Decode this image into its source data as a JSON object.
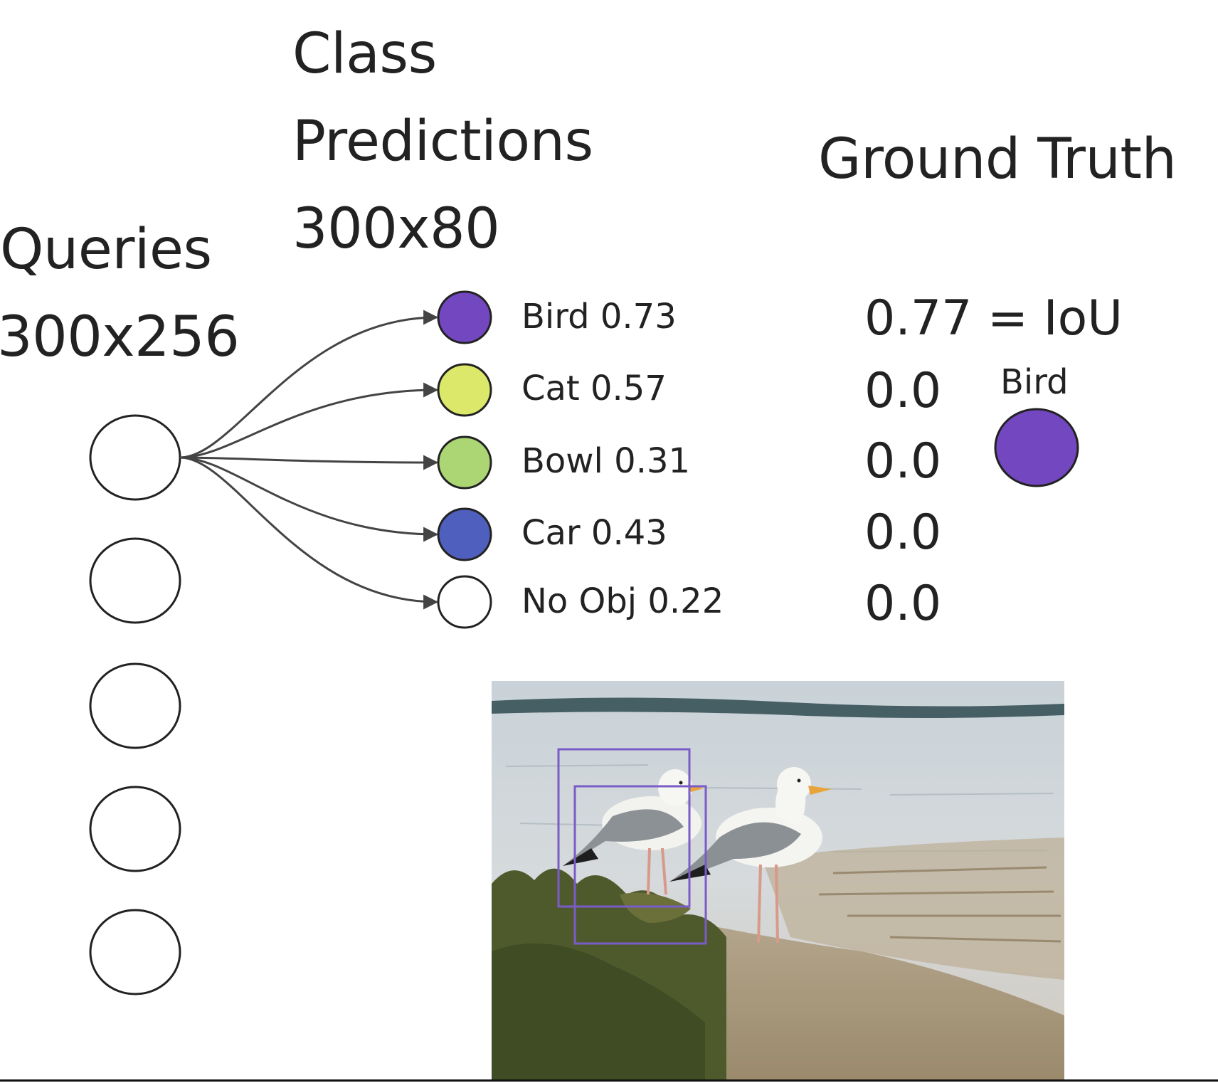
{
  "headings": {
    "class_line1": "Class",
    "class_line2": "Predictions",
    "class_shape": "300x80",
    "queries_line1": "Queries",
    "queries_shape": "300x256",
    "ground_truth": "Ground Truth"
  },
  "predictions": [
    {
      "label": "Bird 0.73",
      "color": "#7247bf"
    },
    {
      "label": "Cat 0.57",
      "color": "#dbe86a"
    },
    {
      "label": "Bowl 0.31",
      "color": "#acd673"
    },
    {
      "label": "Car 0.43",
      "color": "#4e5fbe"
    },
    {
      "label": "No Obj 0.22",
      "color": "#ffffff"
    }
  ],
  "iou_values": [
    "0.77 = IoU",
    "0.0",
    "0.0",
    "0.0",
    "0.0"
  ],
  "ground_truth": {
    "label": "Bird",
    "color": "#7247bf"
  },
  "query_count": 5,
  "colors": {
    "stroke": "#222222",
    "arrow": "#444444",
    "box": "#7a5cc8"
  }
}
